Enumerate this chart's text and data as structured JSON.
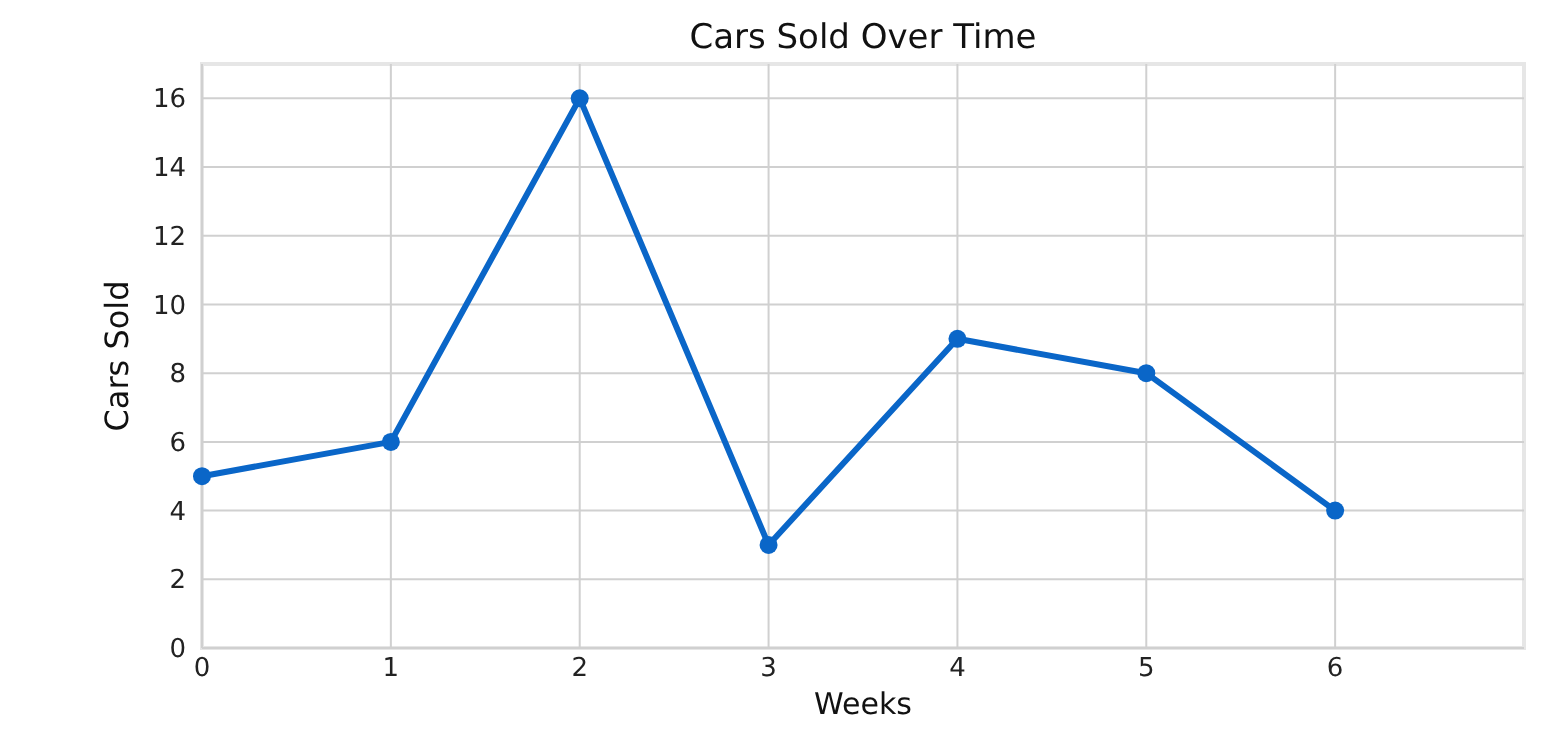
{
  "chart_data": {
    "type": "line",
    "title": "Cars Sold Over Time",
    "xlabel": "Weeks",
    "ylabel": "Cars Sold",
    "x": [
      0,
      1,
      2,
      3,
      4,
      5,
      6
    ],
    "series": [
      {
        "color": "#0a66c8",
        "values": [
          5,
          6,
          16,
          3,
          9,
          8,
          4
        ]
      }
    ],
    "xlim": [
      0,
      7
    ],
    "xticks": [
      0,
      1,
      2,
      3,
      4,
      5,
      6
    ],
    "ylim": [
      0,
      17
    ],
    "yticks": [
      0,
      2,
      4,
      6,
      8,
      10,
      12,
      14,
      16
    ],
    "grid": true,
    "marker": "circle",
    "line_style": "solid"
  }
}
